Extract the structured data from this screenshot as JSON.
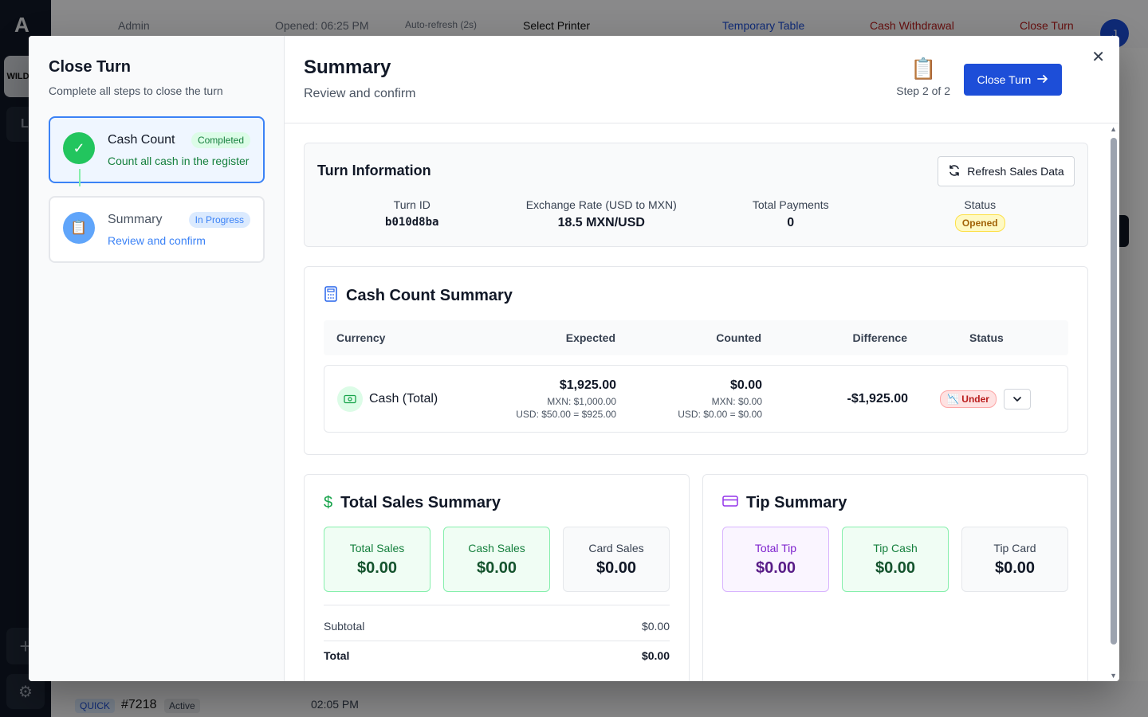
{
  "background": {
    "logo": "A",
    "brand": "WILD CA",
    "tile": "L",
    "topbar": {
      "admin": "Admin",
      "opened": "Opened: 06:25 PM",
      "auto_refresh": "Auto-refresh (2s)",
      "select_printer": "Select Printer",
      "temporary_table": "Temporary Table",
      "cash_withdrawal": "Cash Withdrawal",
      "close_turn": "Close Turn",
      "avatar": "J"
    },
    "order": {
      "tag": "QUICK",
      "number": "#7218",
      "status": "Active",
      "time": "02:05 PM"
    }
  },
  "steps_panel": {
    "title": "Close Turn",
    "subtitle": "Complete all steps to close the turn",
    "steps": [
      {
        "name": "Cash Count",
        "badge": "Completed",
        "desc": "Count all cash in the register"
      },
      {
        "name": "Summary",
        "badge": "In Progress",
        "desc": "Review and confirm"
      }
    ]
  },
  "header": {
    "title": "Summary",
    "subtitle": "Review and confirm",
    "step_indicator": "Step 2 of 2",
    "close_turn_label": "Close Turn"
  },
  "turn_info": {
    "title": "Turn Information",
    "refresh_label": "Refresh Sales Data",
    "fields": [
      {
        "label": "Turn ID",
        "value": "b010d8ba"
      },
      {
        "label": "Exchange Rate (USD to MXN)",
        "value": "18.5 MXN/USD"
      },
      {
        "label": "Total Payments",
        "value": "0"
      },
      {
        "label": "Status",
        "value": "Opened"
      }
    ]
  },
  "cash_count": {
    "title": "Cash Count Summary",
    "columns": [
      "Currency",
      "Expected",
      "Counted",
      "Difference",
      "Status"
    ],
    "row": {
      "currency": "Cash (Total)",
      "expected": "$1,925.00",
      "expected_mxn": "MXN: $1,000.00",
      "expected_usd": "USD: $50.00 = $925.00",
      "counted": "$0.00",
      "counted_mxn": "MXN: $0.00",
      "counted_usd": "USD: $0.00 = $0.00",
      "difference": "-$1,925.00",
      "status": "Under"
    }
  },
  "sales": {
    "title": "Total Sales Summary",
    "tiles": [
      {
        "label": "Total Sales",
        "value": "$0.00"
      },
      {
        "label": "Cash Sales",
        "value": "$0.00"
      },
      {
        "label": "Card Sales",
        "value": "$0.00"
      }
    ],
    "subtotal_label": "Subtotal",
    "subtotal_value": "$0.00",
    "total_label": "Total",
    "total_value": "$0.00"
  },
  "tips": {
    "title": "Tip Summary",
    "tiles": [
      {
        "label": "Total Tip",
        "value": "$0.00"
      },
      {
        "label": "Tip Cash",
        "value": "$0.00"
      },
      {
        "label": "Tip Card",
        "value": "$0.00"
      }
    ]
  },
  "colors": {
    "primary": "#1d4ed8",
    "success": "#22c55e",
    "danger": "#b91c1c",
    "warning": "#a16207",
    "purple": "#7e22ce"
  }
}
